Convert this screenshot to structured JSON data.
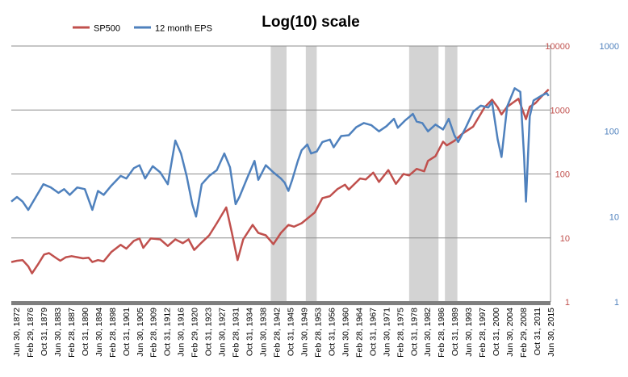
{
  "chart_data": {
    "type": "line",
    "title": "Log(10) scale",
    "log_scale": true,
    "grid": true,
    "legend_position": "top-left",
    "left_axis": {
      "ticks": [
        "1",
        "10",
        "100",
        "1000",
        "10000"
      ],
      "color": "#C0504D",
      "ylim": [
        1,
        10000
      ]
    },
    "right_axis": {
      "ticks": [
        "1",
        "10",
        "100",
        "1000"
      ],
      "color": "#4F81BD",
      "ylim": [
        1,
        1000
      ]
    },
    "x_tick_labels": [
      "Jun 30, 1872",
      "Feb 29, 1876",
      "Oct 31, 1879",
      "Jun 30, 1883",
      "Feb 28, 1887",
      "Oct 31, 1890",
      "Jun 30, 1894",
      "Feb 28, 1898",
      "Oct 31, 1901",
      "Jun 30, 1905",
      "Feb 28, 1909",
      "Oct 31, 1912",
      "Jun 30, 1916",
      "Feb 29, 1920",
      "Oct 31, 1923",
      "Jun 30, 1927",
      "Feb 28, 1931",
      "Oct 31, 1934",
      "Jun 30, 1938",
      "Feb 28, 1942",
      "Oct 31, 1945",
      "Jun 30, 1949",
      "Feb 28, 1953",
      "Oct 31, 1956",
      "Jun 30, 1960",
      "Feb 28, 1964",
      "Oct 31, 1967",
      "Jun 30, 1971",
      "Feb 28, 1975",
      "Oct 31, 1978",
      "Jun 30, 1982",
      "Feb 28, 1986",
      "Oct 31, 1989",
      "Jun 30, 1993",
      "Feb 28, 1997",
      "Oct 31, 2000",
      "Jun 30, 2004",
      "Feb 29, 2008",
      "Oct 31, 2011",
      "Jun 30, 2015"
    ],
    "x_range": [
      1872.5,
      2015.5
    ],
    "shaded_periods": [
      [
        1941.3,
        1945.5
      ],
      [
        1950.6,
        1953.5
      ],
      [
        1978.0,
        1985.8
      ],
      [
        1987.5,
        1990.8
      ]
    ],
    "series": [
      {
        "name": "SP500",
        "axis": "left",
        "color": "#C0504D",
        "points": [
          [
            1872.5,
            4.2
          ],
          [
            1874,
            4.4
          ],
          [
            1875.5,
            4.5
          ],
          [
            1877,
            3.6
          ],
          [
            1878,
            2.8
          ],
          [
            1879.5,
            3.8
          ],
          [
            1881.2,
            5.5
          ],
          [
            1882.5,
            5.8
          ],
          [
            1884.5,
            4.8
          ],
          [
            1885.5,
            4.4
          ],
          [
            1887,
            5.0
          ],
          [
            1888.5,
            5.2
          ],
          [
            1890,
            5.0
          ],
          [
            1891.5,
            4.8
          ],
          [
            1893,
            4.9
          ],
          [
            1894,
            4.2
          ],
          [
            1895.5,
            4.5
          ],
          [
            1897,
            4.3
          ],
          [
            1899,
            6.0
          ],
          [
            1901.5,
            7.8
          ],
          [
            1903,
            6.8
          ],
          [
            1905,
            9.0
          ],
          [
            1906.5,
            9.8
          ],
          [
            1907.5,
            7.0
          ],
          [
            1909.5,
            9.8
          ],
          [
            1912,
            9.5
          ],
          [
            1914,
            7.5
          ],
          [
            1916,
            9.5
          ],
          [
            1918,
            8.3
          ],
          [
            1919.5,
            9.5
          ],
          [
            1921,
            6.5
          ],
          [
            1923,
            8.5
          ],
          [
            1925,
            11
          ],
          [
            1927,
            17
          ],
          [
            1929.5,
            30
          ],
          [
            1931,
            12
          ],
          [
            1932.5,
            4.5
          ],
          [
            1934,
            9.5
          ],
          [
            1936.5,
            16
          ],
          [
            1938,
            12
          ],
          [
            1940,
            11
          ],
          [
            1942,
            8.0
          ],
          [
            1944,
            12
          ],
          [
            1946,
            16
          ],
          [
            1947.5,
            15
          ],
          [
            1949.5,
            17
          ],
          [
            1953,
            25
          ],
          [
            1955,
            42
          ],
          [
            1957,
            45
          ],
          [
            1959,
            58
          ],
          [
            1961,
            68
          ],
          [
            1962,
            57
          ],
          [
            1965,
            85
          ],
          [
            1966.5,
            82
          ],
          [
            1968.5,
            105
          ],
          [
            1970,
            75
          ],
          [
            1972.5,
            115
          ],
          [
            1974.5,
            70
          ],
          [
            1976.5,
            100
          ],
          [
            1978,
            95
          ],
          [
            1980,
            120
          ],
          [
            1982,
            110
          ],
          [
            1983,
            160
          ],
          [
            1985,
            190
          ],
          [
            1987,
            320
          ],
          [
            1988,
            280
          ],
          [
            1990,
            330
          ],
          [
            1992,
            420
          ],
          [
            1995,
            550
          ],
          [
            1998,
            1100
          ],
          [
            2000,
            1450
          ],
          [
            2001.5,
            1100
          ],
          [
            2002.5,
            850
          ],
          [
            2004,
            1120
          ],
          [
            2007,
            1500
          ],
          [
            2009,
            720
          ],
          [
            2010,
            1120
          ],
          [
            2011.5,
            1280
          ],
          [
            2013,
            1600
          ],
          [
            2015,
            2100
          ]
        ]
      },
      {
        "name": "12 month EPS",
        "axis": "right",
        "color": "#4F81BD",
        "points": [
          [
            1872.5,
            15
          ],
          [
            1874,
            17
          ],
          [
            1875.5,
            15
          ],
          [
            1877,
            12
          ],
          [
            1879,
            17
          ],
          [
            1881,
            24
          ],
          [
            1883,
            22
          ],
          [
            1885,
            19
          ],
          [
            1886.5,
            21
          ],
          [
            1888,
            18
          ],
          [
            1890,
            22
          ],
          [
            1892,
            21
          ],
          [
            1894,
            12
          ],
          [
            1895.5,
            20
          ],
          [
            1897,
            18
          ],
          [
            1899,
            23
          ],
          [
            1901.5,
            30
          ],
          [
            1903,
            28
          ],
          [
            1905,
            37
          ],
          [
            1906.5,
            40
          ],
          [
            1908,
            28
          ],
          [
            1910,
            39
          ],
          [
            1912,
            33
          ],
          [
            1914,
            24
          ],
          [
            1916,
            78
          ],
          [
            1917.5,
            55
          ],
          [
            1919,
            30
          ],
          [
            1920.5,
            14
          ],
          [
            1921.5,
            10
          ],
          [
            1923,
            24
          ],
          [
            1925,
            30
          ],
          [
            1927,
            35
          ],
          [
            1929,
            55
          ],
          [
            1930.5,
            38
          ],
          [
            1932,
            14
          ],
          [
            1933,
            17
          ],
          [
            1935,
            28
          ],
          [
            1937,
            45
          ],
          [
            1938,
            27
          ],
          [
            1940,
            40
          ],
          [
            1942,
            33
          ],
          [
            1944,
            28
          ],
          [
            1945,
            25
          ],
          [
            1946,
            20
          ],
          [
            1947,
            27
          ],
          [
            1948.5,
            45
          ],
          [
            1949.5,
            60
          ],
          [
            1951,
            70
          ],
          [
            1952,
            55
          ],
          [
            1953.5,
            58
          ],
          [
            1955,
            75
          ],
          [
            1957,
            80
          ],
          [
            1958,
            65
          ],
          [
            1960,
            88
          ],
          [
            1962,
            90
          ],
          [
            1964,
            112
          ],
          [
            1966,
            125
          ],
          [
            1968,
            118
          ],
          [
            1970,
            100
          ],
          [
            1972,
            115
          ],
          [
            1974,
            140
          ],
          [
            1975,
            110
          ],
          [
            1977,
            135
          ],
          [
            1979,
            160
          ],
          [
            1980,
            130
          ],
          [
            1981.5,
            125
          ],
          [
            1983,
            100
          ],
          [
            1985,
            120
          ],
          [
            1987,
            105
          ],
          [
            1988.5,
            140
          ],
          [
            1990,
            90
          ],
          [
            1991,
            75
          ],
          [
            1993,
            110
          ],
          [
            1995,
            170
          ],
          [
            1997,
            200
          ],
          [
            1999,
            190
          ],
          [
            2000,
            220
          ],
          [
            2001.5,
            80
          ],
          [
            2002.5,
            50
          ],
          [
            2004,
            195
          ],
          [
            2006,
            320
          ],
          [
            2007.5,
            290
          ],
          [
            2008.5,
            50
          ],
          [
            2009,
            15
          ],
          [
            2010,
            150
          ],
          [
            2011,
            230
          ],
          [
            2013,
            260
          ],
          [
            2014.5,
            280
          ],
          [
            2015,
            260
          ]
        ]
      }
    ]
  }
}
